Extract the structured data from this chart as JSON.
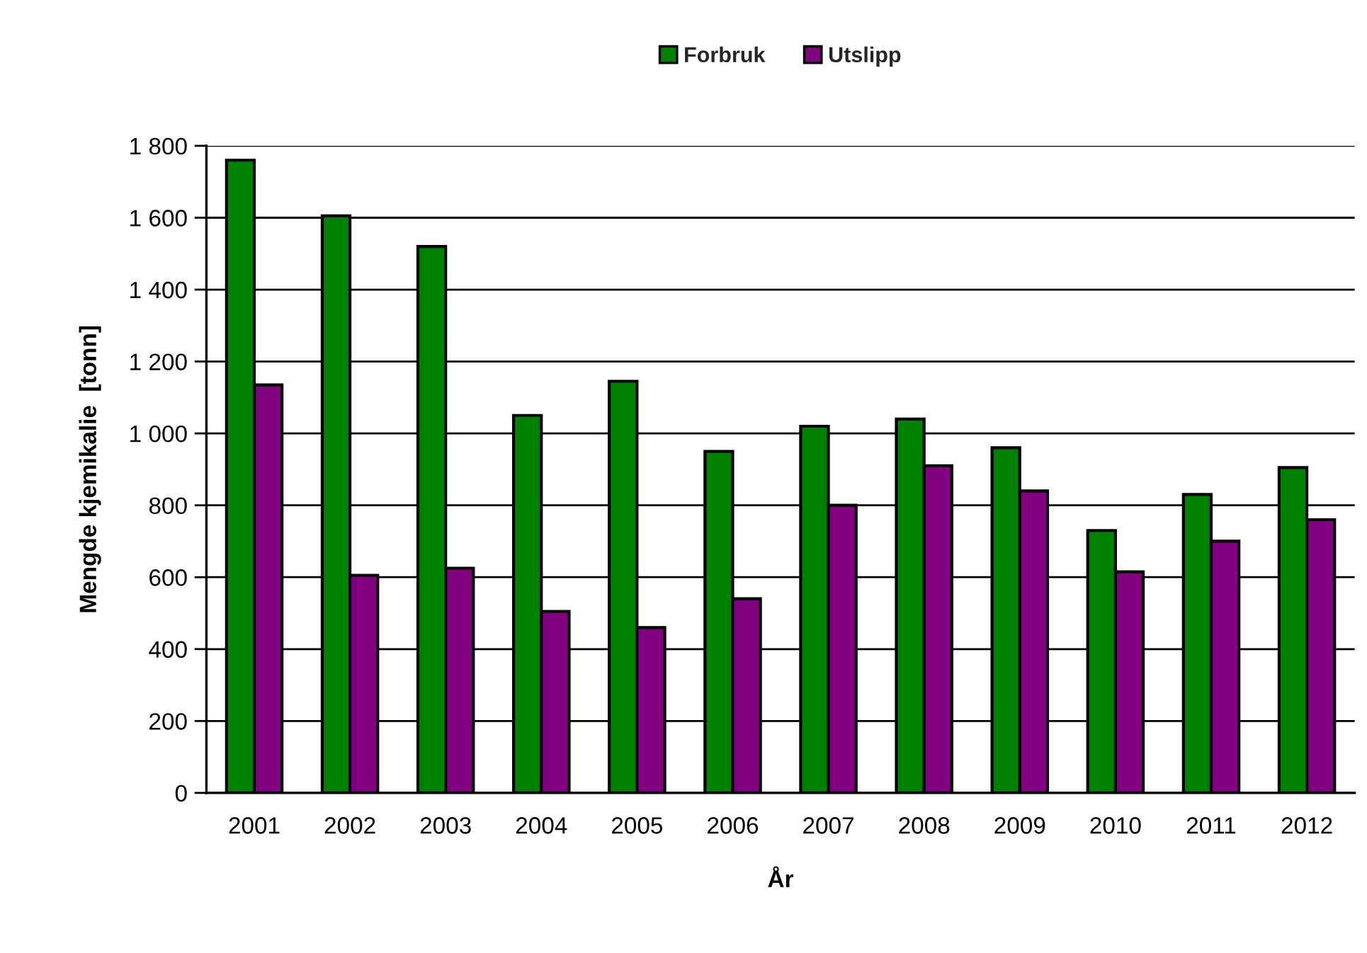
{
  "chart_data": {
    "type": "bar",
    "xlabel": "År",
    "ylabel": "Mengde kjemikalie  [tonn]",
    "categories": [
      "2001",
      "2002",
      "2003",
      "2004",
      "2005",
      "2006",
      "2007",
      "2008",
      "2009",
      "2010",
      "2011",
      "2012"
    ],
    "series": [
      {
        "name": "Forbruk",
        "color": "#008000",
        "values": [
          1760,
          1605,
          1520,
          1050,
          1145,
          950,
          1020,
          1040,
          960,
          730,
          830,
          905
        ]
      },
      {
        "name": "Utslipp",
        "color": "#800080",
        "values": [
          1135,
          605,
          625,
          505,
          460,
          540,
          800,
          910,
          840,
          615,
          700,
          760
        ]
      }
    ],
    "ylim": [
      0,
      1800
    ],
    "yticks": [
      0,
      200,
      400,
      600,
      800,
      {
        "value": 1000,
        "label": "1 000"
      },
      {
        "value": 1200,
        "label": "1 200"
      },
      {
        "value": 1400,
        "label": "1 400"
      },
      {
        "value": 1600,
        "label": "1 600"
      },
      {
        "value": 1800,
        "label": "1 800"
      }
    ],
    "grid": "y",
    "legend": "top"
  }
}
